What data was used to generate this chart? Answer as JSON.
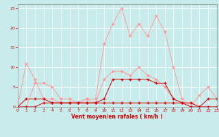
{
  "x": [
    0,
    1,
    2,
    3,
    4,
    5,
    6,
    7,
    8,
    9,
    10,
    11,
    12,
    13,
    14,
    15,
    16,
    17,
    18,
    19,
    20,
    21,
    22,
    23
  ],
  "line_light1": [
    0,
    11,
    7,
    2,
    2,
    1,
    1,
    1,
    2,
    1,
    7,
    9,
    9,
    8,
    10,
    8,
    7,
    5,
    2,
    1,
    1,
    0,
    0,
    0
  ],
  "line_light2": [
    0,
    0,
    6,
    6,
    5,
    2,
    2,
    1,
    2,
    2,
    16,
    21,
    25,
    18,
    21,
    18,
    23,
    19,
    10,
    2,
    0,
    3,
    5,
    2
  ],
  "line_dark1": [
    0,
    2,
    2,
    2,
    1,
    1,
    1,
    1,
    1,
    1,
    1,
    1,
    1,
    1,
    1,
    1,
    1,
    1,
    1,
    1,
    1,
    0,
    0,
    0
  ],
  "line_dark2": [
    0,
    0,
    0,
    1,
    1,
    1,
    1,
    1,
    1,
    1,
    2,
    7,
    7,
    7,
    7,
    7,
    6,
    6,
    2,
    1,
    0,
    0,
    2,
    2
  ],
  "color_dark": "#cc0000",
  "color_light": "#ff9999",
  "background": "#c8ecec",
  "grid_color": "#ffffff",
  "xlabel": "Vent moyen/en rafales ( km/h )",
  "xlim": [
    0,
    23
  ],
  "ylim": [
    0,
    26
  ],
  "yticks": [
    0,
    5,
    10,
    15,
    20,
    25
  ],
  "xticks": [
    0,
    1,
    2,
    3,
    4,
    5,
    6,
    7,
    8,
    9,
    10,
    11,
    12,
    13,
    14,
    15,
    16,
    17,
    18,
    19,
    20,
    21,
    22,
    23
  ]
}
